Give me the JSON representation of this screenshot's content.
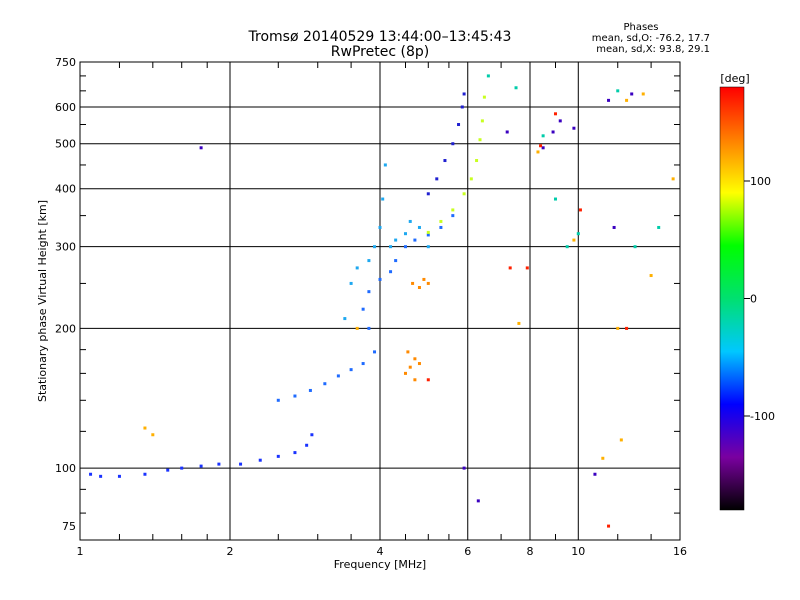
{
  "chart_data": {
    "type": "scatter",
    "title": "Tromsø 20140529 13:44:00–13:45:43",
    "subtitle": "RwPretec (8p)",
    "xlabel": "Frequency [MHz]",
    "ylabel": "Stationary phase Virtual Height [km]",
    "x_scale": "log",
    "y_scale": "log",
    "xlim": [
      1,
      16
    ],
    "ylim": [
      70,
      750
    ],
    "x_ticks": [
      1,
      2,
      4,
      6,
      8,
      10,
      16
    ],
    "y_ticks": [
      75,
      100,
      200,
      300,
      400,
      500,
      600,
      750
    ],
    "grid": true,
    "phase_info": {
      "heading": "Phases",
      "o_line": "mean, sd,O: -76.2, 17.7",
      "x_line": "mean, sd,X: 93.8, 29.1"
    },
    "colorbar": {
      "label": "[deg]",
      "range": [
        -180,
        180
      ],
      "ticks": [
        100,
        0,
        -100
      ],
      "colors": [
        "#000000",
        "#7a00a0",
        "#0000ff",
        "#00c8ff",
        "#00e070",
        "#00ff00",
        "#ffff00",
        "#ff8000",
        "#ff0000"
      ]
    },
    "series": [
      {
        "name": "",
        "phase": -95,
        "color": "#1a33ff",
        "points": [
          [
            1.05,
            97
          ],
          [
            1.1,
            96
          ],
          [
            1.2,
            96
          ],
          [
            1.35,
            97
          ],
          [
            1.5,
            99
          ],
          [
            1.6,
            100
          ],
          [
            1.75,
            101
          ],
          [
            1.9,
            102
          ],
          [
            2.1,
            102
          ],
          [
            2.3,
            104
          ],
          [
            2.5,
            106
          ],
          [
            2.7,
            108
          ],
          [
            2.85,
            112
          ],
          [
            2.92,
            118
          ]
        ]
      },
      {
        "name": "",
        "phase": -80,
        "color": "#1f6bff",
        "points": [
          [
            2.5,
            140
          ],
          [
            2.7,
            143
          ],
          [
            2.9,
            147
          ],
          [
            3.1,
            152
          ],
          [
            3.3,
            158
          ],
          [
            3.5,
            163
          ],
          [
            3.7,
            168
          ],
          [
            3.9,
            178
          ],
          [
            3.8,
            200
          ],
          [
            3.7,
            220
          ],
          [
            3.8,
            240
          ],
          [
            4.0,
            255
          ],
          [
            4.2,
            265
          ],
          [
            4.3,
            280
          ],
          [
            4.5,
            300
          ],
          [
            4.7,
            310
          ],
          [
            5.0,
            318
          ],
          [
            5.3,
            330
          ],
          [
            5.6,
            350
          ]
        ]
      },
      {
        "name": "",
        "phase": -70,
        "color": "#1ea8f0",
        "points": [
          [
            3.4,
            210
          ],
          [
            3.5,
            250
          ],
          [
            3.6,
            270
          ],
          [
            3.8,
            280
          ],
          [
            3.9,
            300
          ],
          [
            4.0,
            330
          ],
          [
            4.05,
            380
          ],
          [
            4.1,
            450
          ],
          [
            4.2,
            300
          ],
          [
            4.3,
            310
          ],
          [
            4.5,
            320
          ],
          [
            4.6,
            340
          ],
          [
            4.8,
            330
          ],
          [
            5.0,
            300
          ]
        ]
      },
      {
        "name": "",
        "phase": -90,
        "color": "#2020d0",
        "points": [
          [
            5.0,
            390
          ],
          [
            5.2,
            420
          ],
          [
            5.4,
            460
          ],
          [
            5.6,
            500
          ],
          [
            5.75,
            550
          ],
          [
            5.85,
            600
          ],
          [
            5.9,
            640
          ]
        ]
      },
      {
        "name": "",
        "phase": 95,
        "color": "#c8ff20",
        "points": [
          [
            5.0,
            322
          ],
          [
            5.3,
            340
          ],
          [
            5.6,
            360
          ],
          [
            5.9,
            390
          ],
          [
            6.1,
            420
          ],
          [
            6.25,
            460
          ],
          [
            6.35,
            510
          ],
          [
            6.42,
            560
          ],
          [
            6.48,
            630
          ]
        ]
      },
      {
        "name": "",
        "phase": 140,
        "color": "#ff8a00",
        "points": [
          [
            4.5,
            160
          ],
          [
            4.6,
            165
          ],
          [
            4.7,
            172
          ],
          [
            4.8,
            168
          ],
          [
            4.55,
            178
          ],
          [
            4.7,
            155
          ],
          [
            4.65,
            250
          ],
          [
            4.8,
            245
          ],
          [
            4.9,
            255
          ],
          [
            5.0,
            250
          ]
        ]
      },
      {
        "name": "",
        "phase": 60,
        "color": "#00ccaa",
        "points": [
          [
            6.6,
            700
          ],
          [
            7.5,
            660
          ],
          [
            8.5,
            520
          ],
          [
            9.0,
            380
          ],
          [
            10.0,
            320
          ],
          [
            9.5,
            300
          ],
          [
            12.0,
            650
          ],
          [
            14.5,
            330
          ],
          [
            13.0,
            300
          ]
        ]
      },
      {
        "name": "",
        "phase": 120,
        "color": "#ffb000",
        "points": [
          [
            1.4,
            118
          ],
          [
            1.35,
            122
          ],
          [
            3.6,
            200
          ],
          [
            7.6,
            205
          ],
          [
            8.3,
            480
          ],
          [
            9.8,
            310
          ],
          [
            12.0,
            200
          ],
          [
            13.5,
            640
          ],
          [
            14.0,
            260
          ],
          [
            15.5,
            420
          ],
          [
            12.5,
            620
          ],
          [
            11.2,
            105
          ],
          [
            12.2,
            115
          ]
        ]
      },
      {
        "name": "",
        "phase": -110,
        "color": "#3a00c0",
        "points": [
          [
            1.75,
            490
          ],
          [
            7.2,
            530
          ],
          [
            8.5,
            490
          ],
          [
            9.2,
            560
          ],
          [
            9.8,
            540
          ],
          [
            11.8,
            330
          ],
          [
            11.5,
            620
          ],
          [
            12.8,
            640
          ],
          [
            8.9,
            530
          ],
          [
            10.8,
            97
          ],
          [
            5.9,
            100
          ],
          [
            6.3,
            85
          ]
        ]
      },
      {
        "name": "",
        "phase": 170,
        "color": "#ff2000",
        "points": [
          [
            7.3,
            270
          ],
          [
            7.9,
            270
          ],
          [
            9.0,
            580
          ],
          [
            10.1,
            360
          ],
          [
            8.4,
            495
          ],
          [
            11.5,
            75
          ],
          [
            12.5,
            200
          ],
          [
            5.0,
            155
          ]
        ]
      }
    ]
  }
}
